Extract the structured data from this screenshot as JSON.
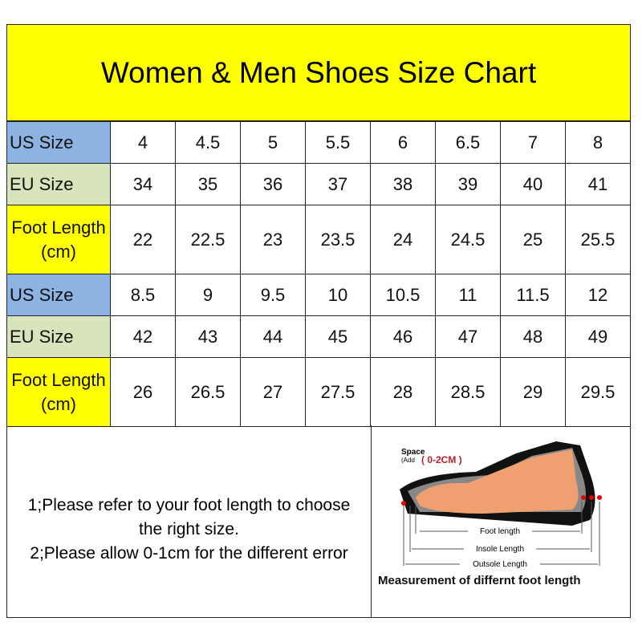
{
  "title": "Women & Men Shoes Size Chart",
  "colors": {
    "title_bg": "#ffff00",
    "us_bg": "#8db3e2",
    "eu_bg": "#d8e4bc",
    "foot_bg": "#ffff00"
  },
  "rows": [
    {
      "label": "US Size",
      "type": "us",
      "values": [
        "4",
        "4.5",
        "5",
        "5.5",
        "6",
        "6.5",
        "7",
        "8"
      ]
    },
    {
      "label": "EU Size",
      "type": "eu",
      "values": [
        "34",
        "35",
        "36",
        "37",
        "38",
        "39",
        "40",
        "41"
      ]
    },
    {
      "label": "Foot Length (cm)",
      "type": "foot",
      "values": [
        "22",
        "22.5",
        "23",
        "23.5",
        "24",
        "24.5",
        "25",
        "25.5"
      ]
    },
    {
      "label": "US Size",
      "type": "us",
      "values": [
        "8.5",
        "9",
        "9.5",
        "10",
        "10.5",
        "11",
        "11.5",
        "12"
      ]
    },
    {
      "label": "EU Size",
      "type": "eu",
      "values": [
        "42",
        "43",
        "44",
        "45",
        "46",
        "47",
        "48",
        "49"
      ]
    },
    {
      "label": "Foot Length (cm)",
      "type": "foot",
      "values": [
        "26",
        "26.5",
        "27",
        "27.5",
        "28",
        "28.5",
        "29",
        "29.5"
      ]
    }
  ],
  "notes": [
    "1;Please refer to your foot length to choose the right size.",
    "2;Please allow 0-1cm for the different error"
  ],
  "diagram": {
    "space_label": "Space",
    "add_label": "(Add",
    "space_value": "( 0-2CM )",
    "foot_length": "Foot length",
    "insole_length": "Insole Length",
    "outsole_length": "Outsole Length",
    "caption": "Measurement of differnt foot length"
  }
}
